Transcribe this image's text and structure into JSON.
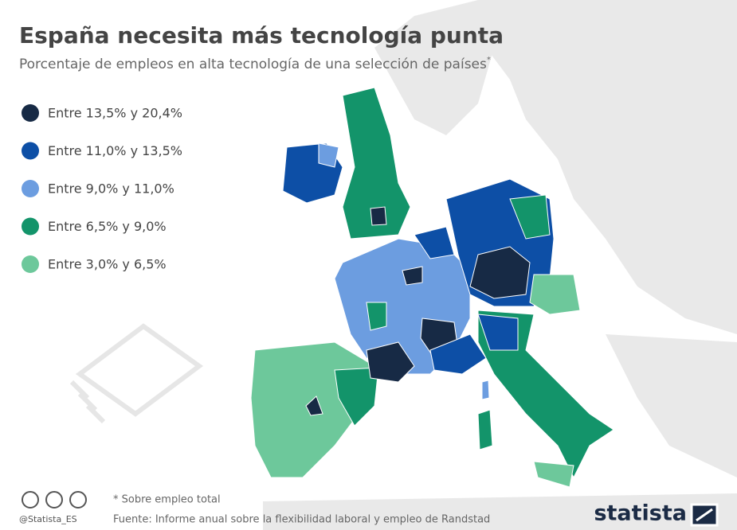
{
  "header": {
    "title": "España necesita más tecnología punta",
    "subtitle": "Porcentaje de empleos en alta tecnología de una selección de países",
    "subtitle_mark": "*"
  },
  "legend": [
    {
      "label": "Entre 13,5% y 20,4%",
      "color": "#172a45"
    },
    {
      "label": "Entre 11,0% y 13,5%",
      "color": "#0d4fa6"
    },
    {
      "label": "Entre 9,0% y 11,0%",
      "color": "#6c9de0"
    },
    {
      "label": "Entre 6,5% y 9,0%",
      "color": "#13946a"
    },
    {
      "label": "Entre 3,0% y 6,5%",
      "color": "#6dc89b"
    }
  ],
  "footer": {
    "handle": "@Statista_ES",
    "note": "* Sobre empleo total",
    "source": "Fuente: Informe anual sobre la flexibilidad laboral y empleo de Randstad",
    "brand": "statista"
  }
}
